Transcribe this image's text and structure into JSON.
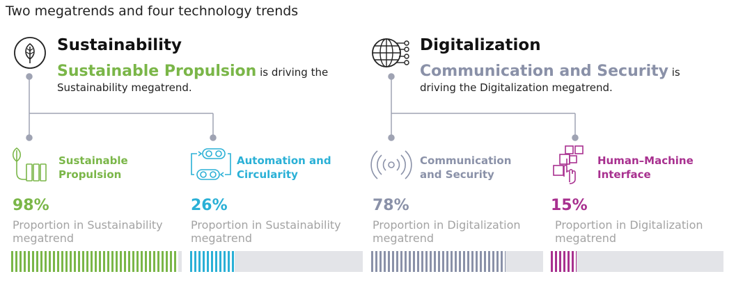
{
  "page_title": "Two megatrends and four technology trends",
  "megatrends": [
    {
      "title": "Sustainability",
      "icon": "leaf-circle-icon",
      "highlight": "Sustainable Propulsion",
      "desc_line1": "is driving the",
      "desc_line2": "Sustainability megatrend.",
      "color": "#7ab648"
    },
    {
      "title": "Digitalization",
      "icon": "globe-network-icon",
      "highlight": "Communication and Security",
      "desc_line1": "is",
      "desc_line2": "driving the Digitalization megatrend.",
      "color": "#8a91a8"
    }
  ],
  "trends": [
    {
      "label_line1": "Sustainable",
      "label_line2": "Propulsion",
      "value": 98,
      "value_label": "98%",
      "caption_line1": "Proportion in Sustainability",
      "caption_line2": "megatrend",
      "color": "#7ab648",
      "icon": "plant-battery-icon"
    },
    {
      "label_line1": "Automation and",
      "label_line2": "Circularity",
      "value": 26,
      "value_label": "26%",
      "caption_line1": "Proportion in Sustainability",
      "caption_line2": "megatrend",
      "color": "#2ab0d6",
      "icon": "conveyor-circularity-icon"
    },
    {
      "label_line1": "Communication",
      "label_line2": "and Security",
      "value": 78,
      "value_label": "78%",
      "caption_line1": "Proportion in Digitalization",
      "caption_line2": "megatrend",
      "color": "#8a91a8",
      "icon": "signal-waves-icon"
    },
    {
      "label_line1": "Human–Machine",
      "label_line2": "Interface",
      "value": 15,
      "value_label": "15%",
      "caption_line1": "Proportion in Digitalization",
      "caption_line2": "megatrend",
      "color": "#a8308f",
      "icon": "touch-interface-icon"
    }
  ]
}
